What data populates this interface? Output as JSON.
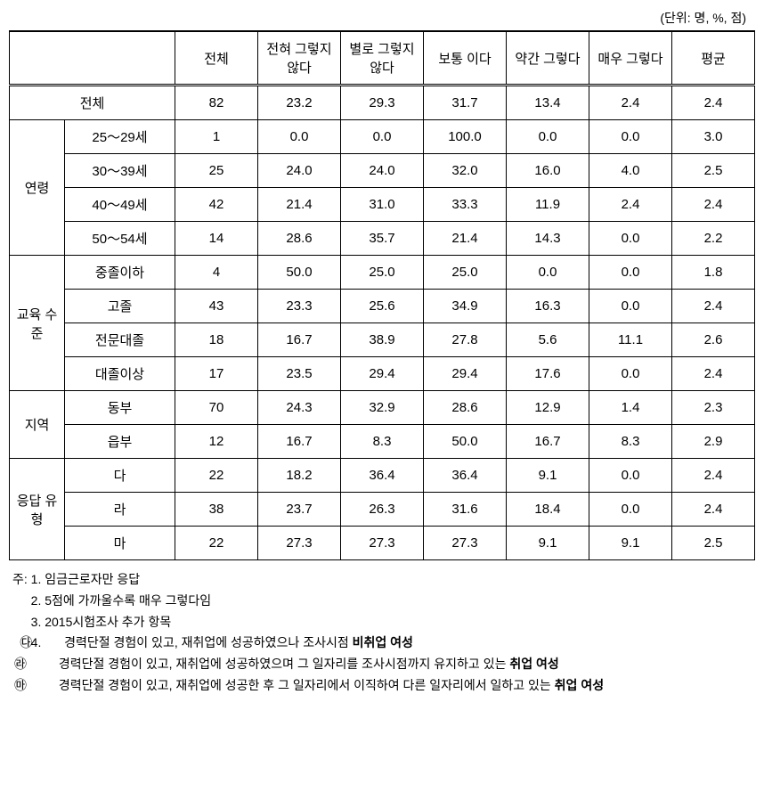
{
  "unit": "(단위: 명, %, 점)",
  "headers": {
    "blank": "",
    "total": "전체",
    "col1": "전혀 그렇지 않다",
    "col2": "별로 그렇지 않다",
    "col3": "보통 이다",
    "col4": "약간 그렇다",
    "col5": "매우 그렇다",
    "avg": "평균"
  },
  "groups": [
    {
      "name": "전체",
      "is_total": true,
      "rows": [
        {
          "label": "전체",
          "total": "82",
          "c1": "23.2",
          "c2": "29.3",
          "c3": "31.7",
          "c4": "13.4",
          "c5": "2.4",
          "avg": "2.4"
        }
      ]
    },
    {
      "name": "연령",
      "rows": [
        {
          "label": "25～29세",
          "total": "1",
          "c1": "0.0",
          "c2": "0.0",
          "c3": "100.0",
          "c4": "0.0",
          "c5": "0.0",
          "avg": "3.0"
        },
        {
          "label": "30～39세",
          "total": "25",
          "c1": "24.0",
          "c2": "24.0",
          "c3": "32.0",
          "c4": "16.0",
          "c5": "4.0",
          "avg": "2.5"
        },
        {
          "label": "40～49세",
          "total": "42",
          "c1": "21.4",
          "c2": "31.0",
          "c3": "33.3",
          "c4": "11.9",
          "c5": "2.4",
          "avg": "2.4"
        },
        {
          "label": "50～54세",
          "total": "14",
          "c1": "28.6",
          "c2": "35.7",
          "c3": "21.4",
          "c4": "14.3",
          "c5": "0.0",
          "avg": "2.2"
        }
      ]
    },
    {
      "name": "교육 수준",
      "rows": [
        {
          "label": "중졸이하",
          "total": "4",
          "c1": "50.0",
          "c2": "25.0",
          "c3": "25.0",
          "c4": "0.0",
          "c5": "0.0",
          "avg": "1.8"
        },
        {
          "label": "고졸",
          "total": "43",
          "c1": "23.3",
          "c2": "25.6",
          "c3": "34.9",
          "c4": "16.3",
          "c5": "0.0",
          "avg": "2.4"
        },
        {
          "label": "전문대졸",
          "total": "18",
          "c1": "16.7",
          "c2": "38.9",
          "c3": "27.8",
          "c4": "5.6",
          "c5": "11.1",
          "avg": "2.6"
        },
        {
          "label": "대졸이상",
          "total": "17",
          "c1": "23.5",
          "c2": "29.4",
          "c3": "29.4",
          "c4": "17.6",
          "c5": "0.0",
          "avg": "2.4"
        }
      ]
    },
    {
      "name": "지역",
      "rows": [
        {
          "label": "동부",
          "total": "70",
          "c1": "24.3",
          "c2": "32.9",
          "c3": "28.6",
          "c4": "12.9",
          "c5": "1.4",
          "avg": "2.3"
        },
        {
          "label": "읍부",
          "total": "12",
          "c1": "16.7",
          "c2": "8.3",
          "c3": "50.0",
          "c4": "16.7",
          "c5": "8.3",
          "avg": "2.9"
        }
      ]
    },
    {
      "name": "응답 유형",
      "rows": [
        {
          "label": "다",
          "total": "22",
          "c1": "18.2",
          "c2": "36.4",
          "c3": "36.4",
          "c4": "9.1",
          "c5": "0.0",
          "avg": "2.4"
        },
        {
          "label": "라",
          "total": "38",
          "c1": "23.7",
          "c2": "26.3",
          "c3": "31.6",
          "c4": "18.4",
          "c5": "0.0",
          "avg": "2.4"
        },
        {
          "label": "마",
          "total": "22",
          "c1": "27.3",
          "c2": "27.3",
          "c3": "27.3",
          "c4": "9.1",
          "c5": "9.1",
          "avg": "2.5"
        }
      ]
    }
  ],
  "notes": {
    "prefix": "주:",
    "n1": "1. 임금근로자만 응답",
    "n2": "2. 5점에 가까울수록 매우 그렇다임",
    "n3": "3. 2015시험조사 추가 항목",
    "n4": "4.",
    "n4a_sym": "㉰",
    "n4a_text1": " 경력단절 경험이 있고, 재취업에 성공하였으나 조사시점 ",
    "n4a_bold": "비취업 여성",
    "n4b_sym": "㉱",
    "n4b_text1": " 경력단절 경험이 있고, 재취업에 성공하였으며 그 일자리를 조사시점까지 유지하고 있는 ",
    "n4b_bold": "취업 여성",
    "n4c_sym": "㉲",
    "n4c_text1": " 경력단절 경험이 있고, 재취업에 성공한 후 그 일자리에서 이직하여 다른 일자리에서 일하고 있는 ",
    "n4c_bold": "취업 여성"
  },
  "styling": {
    "border_color": "#000000",
    "background_color": "#ffffff",
    "font_size_table": 15,
    "font_size_notes": 14,
    "font_family": "Malgun Gothic"
  }
}
